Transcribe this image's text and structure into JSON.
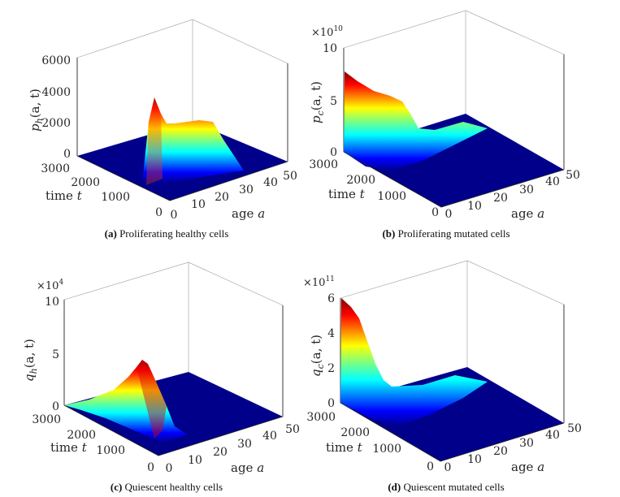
{
  "chart_data": [
    {
      "type": "surface",
      "caption_label": "(a)",
      "caption_text": "Proliferating healthy cells",
      "zlabel": "p_h(a, t)",
      "zlabel_base": "p",
      "zlabel_sub": "h",
      "zlabel_args": "(a, t)",
      "xlabel": "age a",
      "xlabel_word": "age",
      "xlabel_var": "a",
      "ylabel": "time t",
      "ylabel_word": "time",
      "ylabel_var": "t",
      "xlim": [
        0,
        50
      ],
      "ylim": [
        0,
        3000
      ],
      "zlim": [
        0,
        6000
      ],
      "xticks": [
        "0",
        "10",
        "20",
        "30",
        "40",
        "50"
      ],
      "yticks": [
        "0",
        "1000",
        "2000",
        "3000"
      ],
      "zticks": [
        "0",
        "2000",
        "4000",
        "6000"
      ],
      "multiplier": "",
      "surface_shape": "sharp peak ~3800 at time 3000 near age 0, then a broad plateau ~2200 along age at late times; zero for early times",
      "peak": 3800,
      "plateau": 2200
    },
    {
      "type": "surface",
      "caption_label": "(b)",
      "caption_text": "Proliferating mutated cells",
      "zlabel": "p_c(a, t)",
      "zlabel_base": "p",
      "zlabel_sub": "c",
      "zlabel_args": "(a, t)",
      "xlabel": "age a",
      "xlabel_word": "age",
      "xlabel_var": "a",
      "ylabel": "time t",
      "ylabel_word": "time",
      "ylabel_var": "t",
      "xlim": [
        0,
        50
      ],
      "ylim": [
        0,
        3000
      ],
      "zlim": [
        0,
        10
      ],
      "xticks": [
        "0",
        "10",
        "20",
        "30",
        "40",
        "50"
      ],
      "yticks": [
        "0",
        "1000",
        "2000",
        "3000"
      ],
      "zticks": [
        "0",
        "5",
        "10"
      ],
      "multiplier": "×10",
      "multiplier_exp": "10",
      "surface_shape": "max ~8 (×10^10) at time 3000, age 0, decaying along age with a shoulder; zero elsewhere",
      "peak": 8
    },
    {
      "type": "surface",
      "caption_label": "(c)",
      "caption_text": "Quiescent healthy cells",
      "zlabel": "q_h(a, t)",
      "zlabel_base": "q",
      "zlabel_sub": "h",
      "zlabel_args": "(a, t)",
      "xlabel": "age a",
      "xlabel_word": "age",
      "xlabel_var": "a",
      "ylabel": "time t",
      "ylabel_word": "time",
      "ylabel_var": "t",
      "xlim": [
        0,
        50
      ],
      "ylim": [
        0,
        3000
      ],
      "zlim": [
        0,
        10
      ],
      "xticks": [
        "0",
        "10",
        "20",
        "30",
        "40",
        "50"
      ],
      "yticks": [
        "0",
        "1000",
        "2000",
        "3000"
      ],
      "zticks": [
        "0",
        "5",
        "10"
      ],
      "multiplier": "×10",
      "multiplier_exp": "4",
      "surface_shape": "single smooth bump peaking ~4.5 (×10^4) near age 0, mid time; zero elsewhere",
      "peak": 4.5
    },
    {
      "type": "surface",
      "caption_label": "(d)",
      "caption_text": "Quiescent mutated cells",
      "zlabel": "q_c(a, t)",
      "zlabel_base": "q",
      "zlabel_sub": "c",
      "zlabel_args": "(a, t)",
      "xlabel": "age a",
      "xlabel_word": "age",
      "xlabel_var": "a",
      "ylabel": "time t",
      "ylabel_word": "time",
      "ylabel_var": "t",
      "xlim": [
        0,
        50
      ],
      "ylim": [
        0,
        3000
      ],
      "zlim": [
        0,
        6
      ],
      "xticks": [
        "0",
        "10",
        "20",
        "30",
        "40",
        "50"
      ],
      "yticks": [
        "0",
        "1000",
        "2000",
        "3000"
      ],
      "zticks": [
        "0",
        "2",
        "4",
        "6"
      ],
      "multiplier": "×10",
      "multiplier_exp": "11",
      "surface_shape": "max ~6 (×10^11) at time 3000, age 0, decaying over time; zero elsewhere",
      "peak": 6
    }
  ]
}
